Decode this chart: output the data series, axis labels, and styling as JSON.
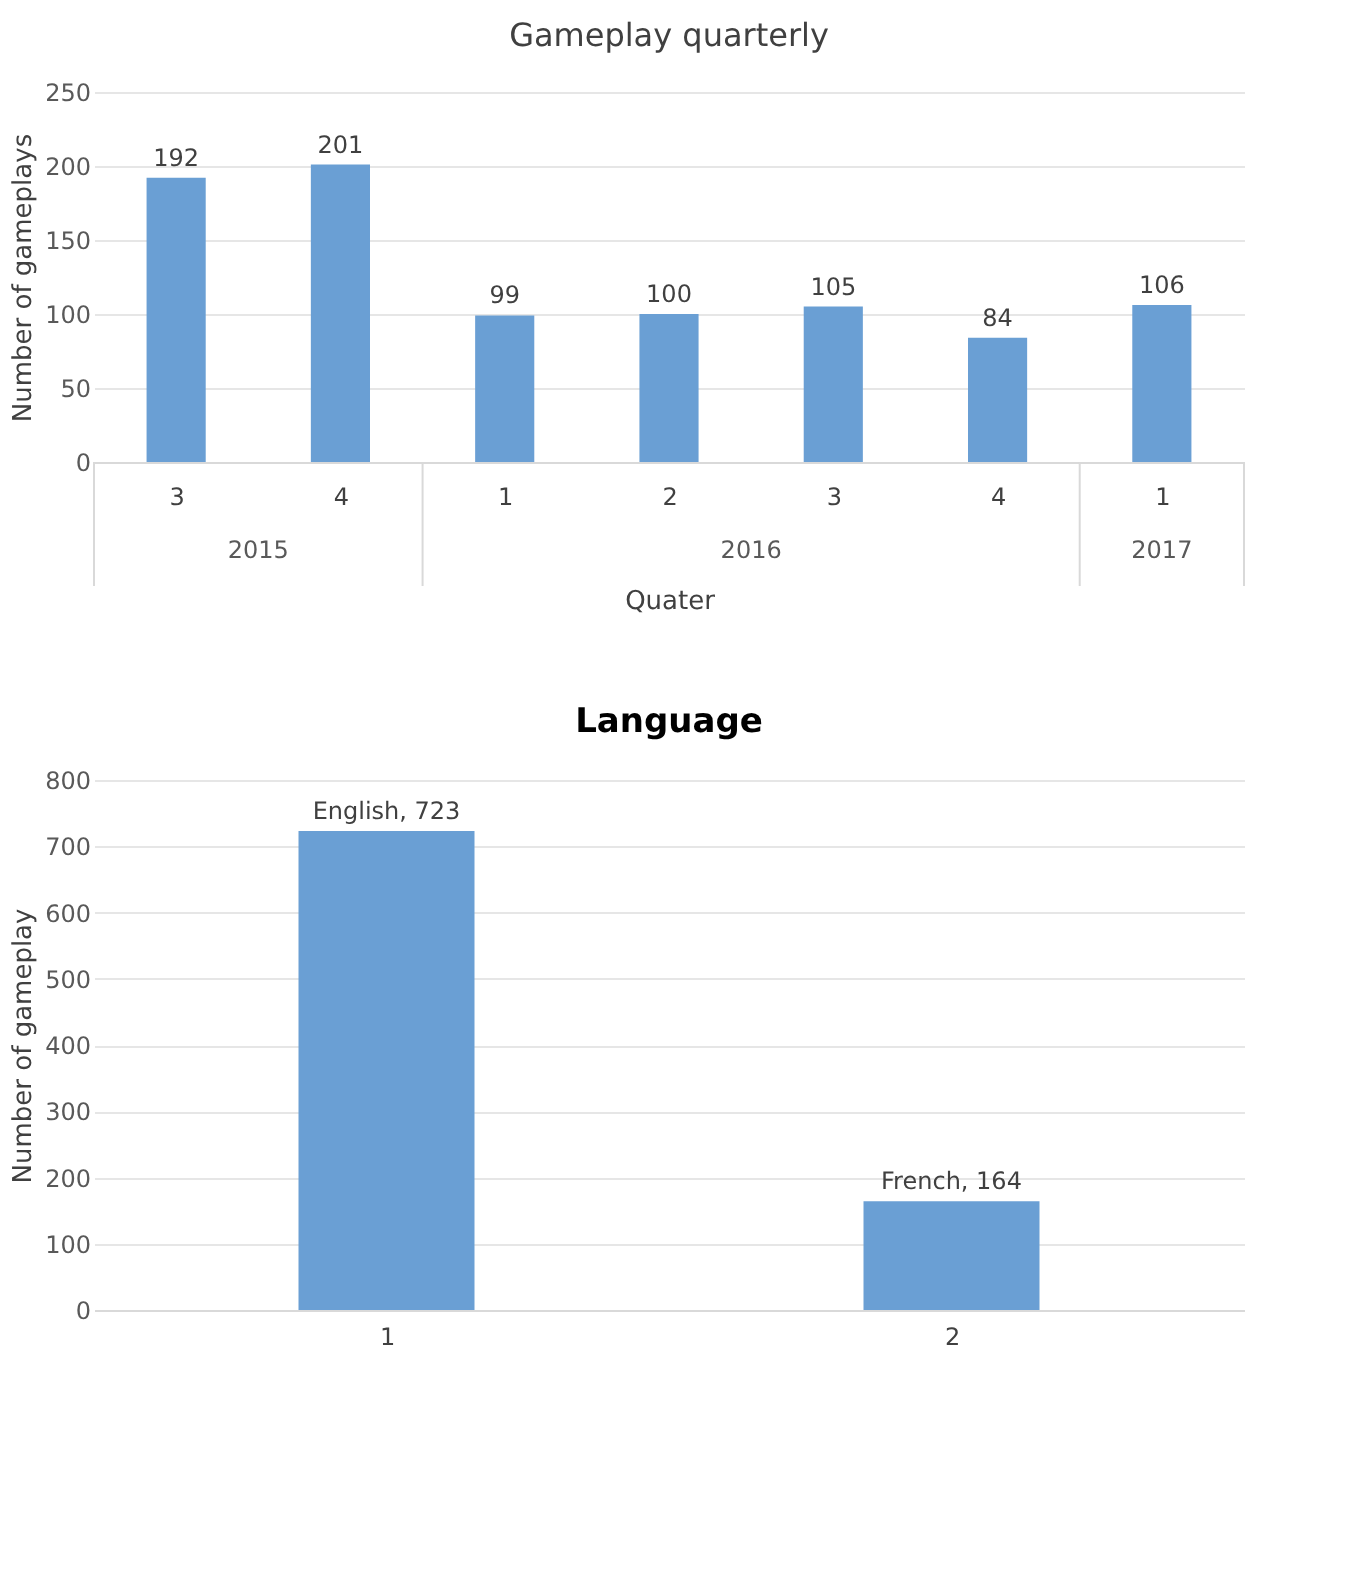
{
  "chart_data": [
    {
      "type": "bar",
      "title": "Gameplay quarterly",
      "xlabel": "Quater",
      "ylabel": "Number of gameplays",
      "categories": [
        "3",
        "4",
        "1",
        "2",
        "3",
        "4",
        "1"
      ],
      "values": [
        192,
        201,
        99,
        100,
        105,
        84,
        106
      ],
      "color": "#6a9fd4",
      "ylim": [
        0,
        250
      ],
      "yticks": [
        0,
        50,
        100,
        150,
        200,
        250
      ],
      "grid": "y",
      "data_labels": true,
      "annotations": [
        "2015",
        "2016",
        "2017"
      ]
    },
    {
      "type": "bar",
      "title": "Language",
      "ylabel": "Number of gameplay",
      "categories": [
        "1",
        "2"
      ],
      "values": [
        723,
        164
      ],
      "color": "#6a9fd4",
      "value_labels": [
        "English, 723",
        "French, 164"
      ],
      "ylim": [
        0,
        800
      ],
      "yticks": [
        0,
        100,
        200,
        300,
        400,
        500,
        600,
        700,
        800
      ],
      "grid": "y"
    }
  ]
}
